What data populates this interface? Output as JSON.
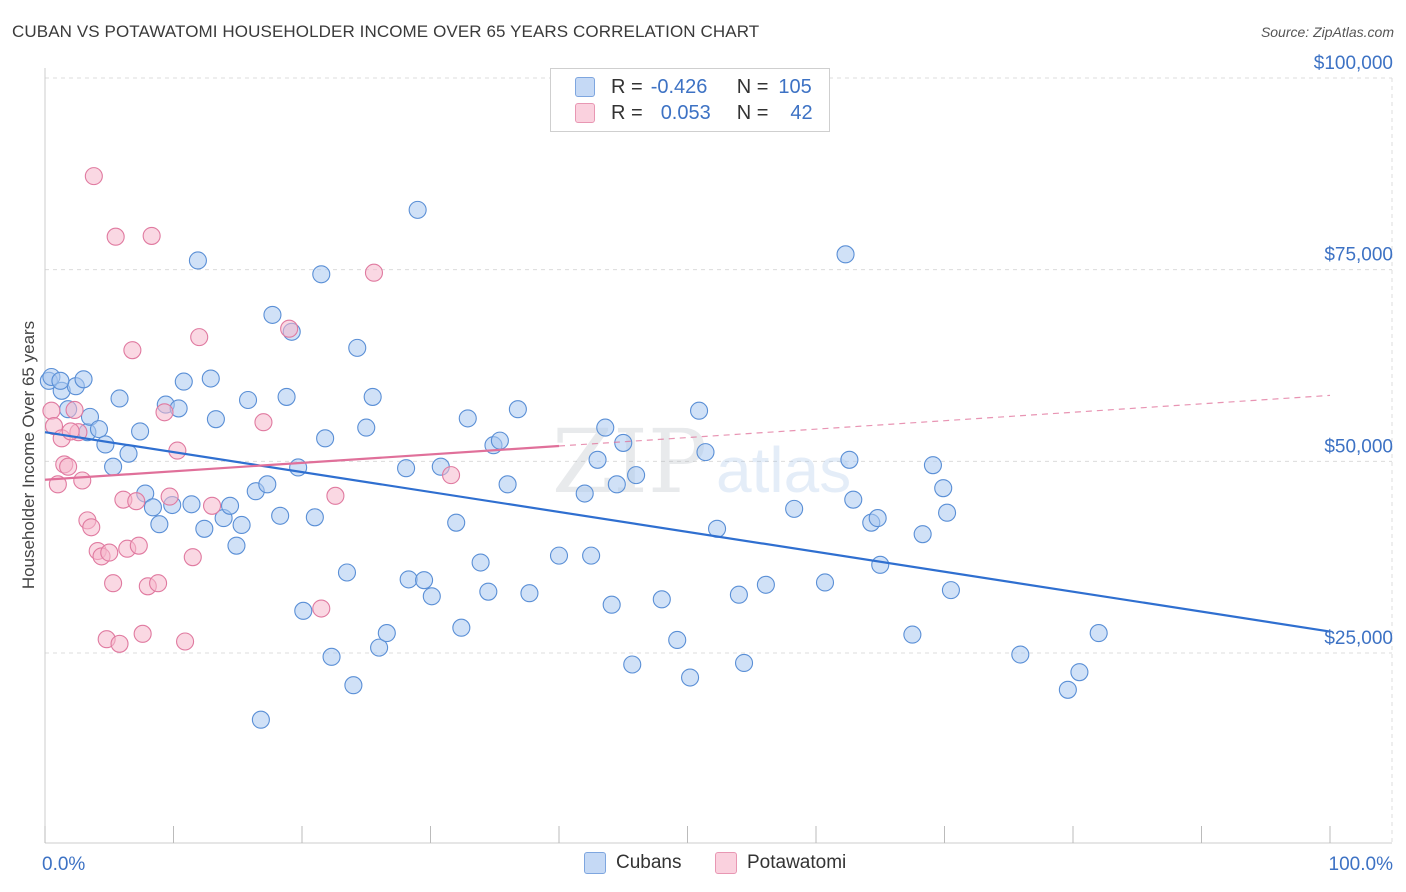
{
  "header": {
    "title": "CUBAN VS POTAWATOMI HOUSEHOLDER INCOME OVER 65 YEARS CORRELATION CHART",
    "source": "Source: ZipAtlas.com"
  },
  "legend": {
    "rows": [
      {
        "r_label": "R =",
        "r_value": "-0.426",
        "n_label": "N =",
        "n_value": "105",
        "color": "#a9c8f0"
      },
      {
        "r_label": "R =",
        "r_value": "0.053",
        "n_label": "N =",
        "n_value": "42",
        "color": "#f6b8cc"
      }
    ]
  },
  "bottom_legend": [
    {
      "label": "Cubans",
      "color": "#a9c8f0"
    },
    {
      "label": "Potawatomi",
      "color": "#f6b8cc"
    }
  ],
  "watermark": {
    "zip": "ZIP",
    "atlas": "atlas"
  },
  "chart_data": {
    "type": "scatter",
    "title": "CUBAN VS POTAWATOMI HOUSEHOLDER INCOME OVER 65 YEARS CORRELATION CHART",
    "ylabel": "Householder Income Over 65 years",
    "xlabel": "",
    "xlim": [
      0,
      100
    ],
    "ylim": [
      0,
      105000
    ],
    "x_tick_labels": [
      {
        "x": 0,
        "label": "0.0%"
      },
      {
        "x": 100,
        "label": "100.0%"
      }
    ],
    "y_tick_labels": [
      {
        "y": 25000,
        "label": "$25,000"
      },
      {
        "y": 50000,
        "label": "$50,000"
      },
      {
        "y": 75000,
        "label": "$75,000"
      },
      {
        "y": 100000,
        "label": "$100,000"
      }
    ],
    "grid": true,
    "legend_position": "top-center",
    "series": [
      {
        "name": "Cubans",
        "color": "#a9c8f0",
        "stroke": "#5a8fd6",
        "trend": {
          "x": [
            0,
            100
          ],
          "y": [
            53800,
            27800
          ],
          "color": "#2f6fd0"
        },
        "points": [
          [
            0.3,
            60500
          ],
          [
            0.5,
            61000
          ],
          [
            1.3,
            59200
          ],
          [
            1.8,
            56800
          ],
          [
            2.4,
            59800
          ],
          [
            3.3,
            53800
          ],
          [
            3.5,
            55800
          ],
          [
            4.2,
            54200
          ],
          [
            4.7,
            52200
          ],
          [
            5.3,
            49300
          ],
          [
            5.8,
            58200
          ],
          [
            6.5,
            51000
          ],
          [
            7.4,
            53900
          ],
          [
            7.8,
            45800
          ],
          [
            8.4,
            44000
          ],
          [
            8.9,
            41800
          ],
          [
            9.4,
            57400
          ],
          [
            9.9,
            44300
          ],
          [
            10.4,
            56900
          ],
          [
            10.8,
            60400
          ],
          [
            11.4,
            44400
          ],
          [
            11.9,
            76200
          ],
          [
            12.4,
            41200
          ],
          [
            12.9,
            60800
          ],
          [
            13.3,
            55500
          ],
          [
            13.9,
            42600
          ],
          [
            14.4,
            44200
          ],
          [
            14.9,
            39000
          ],
          [
            15.3,
            41700
          ],
          [
            15.8,
            58000
          ],
          [
            16.4,
            46100
          ],
          [
            16.8,
            16300
          ],
          [
            17.3,
            47000
          ],
          [
            17.7,
            69100
          ],
          [
            18.3,
            42900
          ],
          [
            18.8,
            58400
          ],
          [
            19.2,
            66900
          ],
          [
            19.7,
            49200
          ],
          [
            20.1,
            30500
          ],
          [
            21.0,
            42700
          ],
          [
            21.5,
            74400
          ],
          [
            21.8,
            53000
          ],
          [
            22.3,
            24500
          ],
          [
            23.5,
            35500
          ],
          [
            24.0,
            20800
          ],
          [
            24.3,
            64800
          ],
          [
            25.0,
            54400
          ],
          [
            25.5,
            58400
          ],
          [
            26.0,
            25700
          ],
          [
            26.6,
            27600
          ],
          [
            28.1,
            49100
          ],
          [
            28.3,
            34600
          ],
          [
            29.0,
            82800
          ],
          [
            29.5,
            34500
          ],
          [
            30.1,
            32400
          ],
          [
            30.8,
            49300
          ],
          [
            32.0,
            42000
          ],
          [
            32.4,
            28300
          ],
          [
            32.9,
            55600
          ],
          [
            33.9,
            36800
          ],
          [
            34.5,
            33000
          ],
          [
            34.9,
            52100
          ],
          [
            35.4,
            52700
          ],
          [
            36.0,
            47000
          ],
          [
            36.8,
            56800
          ],
          [
            37.7,
            32800
          ],
          [
            40.0,
            37700
          ],
          [
            42.0,
            45800
          ],
          [
            42.5,
            37700
          ],
          [
            43.0,
            50200
          ],
          [
            43.6,
            54400
          ],
          [
            44.1,
            31300
          ],
          [
            44.5,
            47000
          ],
          [
            45.0,
            52400
          ],
          [
            45.7,
            23500
          ],
          [
            46.0,
            48200
          ],
          [
            48.0,
            32000
          ],
          [
            49.2,
            26700
          ],
          [
            50.2,
            21800
          ],
          [
            50.9,
            56600
          ],
          [
            51.4,
            51200
          ],
          [
            52.3,
            41200
          ],
          [
            54.0,
            32600
          ],
          [
            54.4,
            23700
          ],
          [
            56.1,
            33900
          ],
          [
            58.3,
            43800
          ],
          [
            60.7,
            34200
          ],
          [
            62.3,
            77000
          ],
          [
            62.6,
            50200
          ],
          [
            62.9,
            45000
          ],
          [
            64.3,
            42000
          ],
          [
            64.8,
            42600
          ],
          [
            65.0,
            36500
          ],
          [
            67.5,
            27400
          ],
          [
            68.3,
            40500
          ],
          [
            69.1,
            49500
          ],
          [
            69.9,
            46500
          ],
          [
            70.2,
            43300
          ],
          [
            70.5,
            33200
          ],
          [
            75.9,
            24800
          ],
          [
            79.6,
            20200
          ],
          [
            80.5,
            22500
          ],
          [
            82.0,
            27600
          ],
          [
            3.0,
            60700
          ],
          [
            1.2,
            60500
          ]
        ]
      },
      {
        "name": "Potawatomi",
        "color": "#f6b8cc",
        "stroke": "#e07aa0",
        "trend": {
          "x": [
            0,
            40
          ],
          "y": [
            47600,
            52000
          ],
          "color": "#e0709a"
        },
        "trend_extension": {
          "x": [
            40,
            100
          ],
          "y": [
            52000,
            58600
          ]
        },
        "points": [
          [
            0.5,
            56600
          ],
          [
            0.7,
            54600
          ],
          [
            1.0,
            47000
          ],
          [
            1.3,
            53000
          ],
          [
            1.5,
            49600
          ],
          [
            1.8,
            49300
          ],
          [
            2.3,
            56700
          ],
          [
            2.6,
            53800
          ],
          [
            2.9,
            47500
          ],
          [
            3.3,
            42300
          ],
          [
            3.6,
            41400
          ],
          [
            3.8,
            87200
          ],
          [
            4.1,
            38300
          ],
          [
            4.4,
            37600
          ],
          [
            4.8,
            26800
          ],
          [
            5.0,
            38100
          ],
          [
            5.3,
            34100
          ],
          [
            5.5,
            79300
          ],
          [
            5.8,
            26200
          ],
          [
            6.1,
            45000
          ],
          [
            6.4,
            38600
          ],
          [
            6.8,
            64500
          ],
          [
            7.1,
            44800
          ],
          [
            7.3,
            39000
          ],
          [
            7.6,
            27500
          ],
          [
            8.0,
            33700
          ],
          [
            8.3,
            79400
          ],
          [
            8.8,
            34100
          ],
          [
            9.3,
            56400
          ],
          [
            9.7,
            45400
          ],
          [
            10.3,
            51400
          ],
          [
            10.9,
            26500
          ],
          [
            11.5,
            37500
          ],
          [
            12.0,
            66200
          ],
          [
            13.0,
            44200
          ],
          [
            17.0,
            55100
          ],
          [
            19.0,
            67300
          ],
          [
            21.5,
            30800
          ],
          [
            22.6,
            45500
          ],
          [
            25.6,
            74600
          ],
          [
            31.6,
            48200
          ],
          [
            2.0,
            53900
          ]
        ]
      }
    ]
  }
}
